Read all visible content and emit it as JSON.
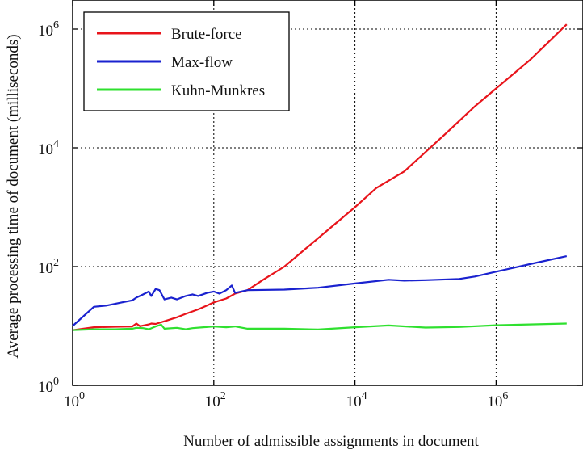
{
  "chart_data": {
    "type": "line",
    "title": "",
    "xlabel": "Number of admissible assignments in document",
    "ylabel": "Average processing time of document (milliseconds)",
    "xscale": "log",
    "yscale": "log",
    "xlim": [
      1,
      13000000
    ],
    "ylim": [
      1,
      2500000
    ],
    "grid": true,
    "legend_position": "top-left",
    "x_ticks": [
      {
        "value": 1,
        "base": "10",
        "exp": "0"
      },
      {
        "value": 100,
        "base": "10",
        "exp": "2"
      },
      {
        "value": 10000,
        "base": "10",
        "exp": "4"
      },
      {
        "value": 1000000,
        "base": "10",
        "exp": "6"
      }
    ],
    "y_ticks": [
      {
        "value": 1,
        "base": "10",
        "exp": "0"
      },
      {
        "value": 100,
        "base": "10",
        "exp": "2"
      },
      {
        "value": 10000,
        "base": "10",
        "exp": "4"
      },
      {
        "value": 1000000,
        "base": "10",
        "exp": "6"
      }
    ],
    "series": [
      {
        "name": "Brute-force",
        "color": "#e8141b",
        "points": [
          [
            1,
            8.5
          ],
          [
            2,
            9.5
          ],
          [
            4,
            9.7
          ],
          [
            7,
            9.8
          ],
          [
            8,
            11
          ],
          [
            9,
            9.9
          ],
          [
            12,
            10.6
          ],
          [
            13,
            11
          ],
          [
            15,
            10.8
          ],
          [
            20,
            12
          ],
          [
            30,
            14
          ],
          [
            40,
            16
          ],
          [
            60,
            19
          ],
          [
            80,
            22
          ],
          [
            100,
            25
          ],
          [
            150,
            29
          ],
          [
            200,
            35
          ],
          [
            300,
            40
          ],
          [
            500,
            60
          ],
          [
            1000,
            100
          ],
          [
            2000,
            200
          ],
          [
            5000,
            500
          ],
          [
            10000,
            1000
          ],
          [
            20000,
            2100
          ],
          [
            50000,
            4000
          ],
          [
            100000,
            8500
          ],
          [
            200000,
            18000
          ],
          [
            500000,
            50000
          ],
          [
            1000000,
            100000
          ],
          [
            3000000,
            300000
          ],
          [
            10000000,
            1200000
          ]
        ]
      },
      {
        "name": "Max-flow",
        "color": "#1a22cf",
        "points": [
          [
            1,
            10
          ],
          [
            2,
            21
          ],
          [
            3,
            22
          ],
          [
            5,
            25
          ],
          [
            7,
            27
          ],
          [
            8,
            30
          ],
          [
            10,
            34
          ],
          [
            12,
            38
          ],
          [
            13,
            32
          ],
          [
            15,
            42
          ],
          [
            17,
            40
          ],
          [
            20,
            28
          ],
          [
            25,
            30
          ],
          [
            30,
            28
          ],
          [
            40,
            32
          ],
          [
            50,
            34
          ],
          [
            60,
            32
          ],
          [
            80,
            36
          ],
          [
            100,
            38
          ],
          [
            120,
            35
          ],
          [
            150,
            40
          ],
          [
            180,
            48
          ],
          [
            200,
            36
          ],
          [
            300,
            40
          ],
          [
            1000,
            41
          ],
          [
            3000,
            44
          ],
          [
            10000,
            52
          ],
          [
            30000,
            60
          ],
          [
            50000,
            58
          ],
          [
            100000,
            59
          ],
          [
            300000,
            62
          ],
          [
            500000,
            68
          ],
          [
            1000000,
            82
          ],
          [
            3000000,
            110
          ],
          [
            10000000,
            150
          ]
        ]
      },
      {
        "name": "Kuhn-Munkres",
        "color": "#2fe02f",
        "points": [
          [
            1,
            8.5
          ],
          [
            2,
            8.8
          ],
          [
            4,
            8.8
          ],
          [
            7,
            9
          ],
          [
            8,
            9.3
          ],
          [
            10,
            9.2
          ],
          [
            12,
            8.8
          ],
          [
            15,
            9.8
          ],
          [
            18,
            10.5
          ],
          [
            20,
            9
          ],
          [
            30,
            9.3
          ],
          [
            40,
            8.8
          ],
          [
            50,
            9.2
          ],
          [
            100,
            9.8
          ],
          [
            150,
            9.5
          ],
          [
            200,
            9.8
          ],
          [
            300,
            9
          ],
          [
            1000,
            9
          ],
          [
            3000,
            8.7
          ],
          [
            10000,
            9.5
          ],
          [
            30000,
            10.2
          ],
          [
            100000,
            9.4
          ],
          [
            300000,
            9.6
          ],
          [
            1000000,
            10.3
          ],
          [
            10000000,
            11
          ]
        ]
      }
    ]
  }
}
